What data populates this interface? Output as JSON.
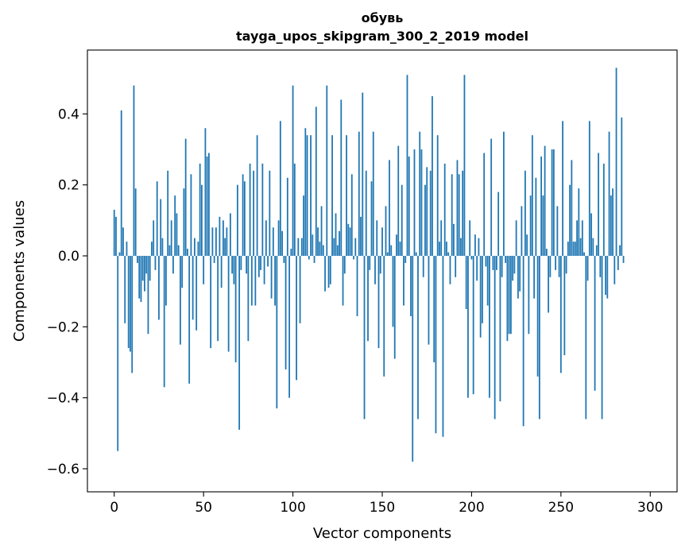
{
  "chart_data": {
    "type": "bar",
    "title": "обувь",
    "subtitle": "tayga_upos_skipgram_300_2_2019 model",
    "xlabel": "Vector components",
    "ylabel": "Components values",
    "xlim": [
      -15,
      315
    ],
    "ylim": [
      -0.665,
      0.58
    ],
    "xticks": [
      0,
      50,
      100,
      150,
      200,
      250,
      300
    ],
    "xtick_labels": [
      "0",
      "50",
      "100",
      "150",
      "200",
      "250",
      "300"
    ],
    "yticks": [
      -0.6,
      -0.4,
      -0.2,
      0.0,
      0.2,
      0.4
    ],
    "ytick_labels": [
      "−0.6",
      "−0.4",
      "−0.2",
      "0.0",
      "0.2",
      "0.4"
    ],
    "bar_color": "#1f77b4",
    "values": [
      0.13,
      0.11,
      -0.55,
      0.01,
      0.41,
      0.08,
      -0.19,
      0.04,
      -0.26,
      -0.27,
      -0.33,
      0.48,
      0.19,
      -0.02,
      -0.12,
      -0.13,
      -0.07,
      -0.1,
      -0.05,
      -0.22,
      -0.07,
      0.04,
      0.1,
      -0.04,
      0.21,
      -0.18,
      0.16,
      0.05,
      -0.37,
      -0.14,
      0.24,
      0.03,
      0.1,
      -0.05,
      0.17,
      0.12,
      0.03,
      -0.25,
      -0.09,
      0.19,
      0.33,
      0.02,
      -0.36,
      0.23,
      -0.18,
      0.05,
      -0.21,
      0.04,
      0.26,
      0.2,
      -0.08,
      0.36,
      0.28,
      0.29,
      -0.26,
      0.08,
      -0.02,
      0.08,
      -0.24,
      0.11,
      -0.09,
      0.1,
      0.05,
      0.08,
      -0.27,
      0.12,
      -0.05,
      -0.08,
      -0.3,
      0.2,
      -0.49,
      -0.04,
      0.23,
      0.21,
      -0.05,
      -0.24,
      0.26,
      -0.14,
      0.24,
      -0.14,
      0.34,
      -0.06,
      -0.04,
      0.26,
      -0.08,
      0.1,
      -0.03,
      0.24,
      -0.12,
      0.08,
      -0.14,
      -0.43,
      0.1,
      0.38,
      0.07,
      -0.02,
      -0.32,
      0.22,
      -0.4,
      0.02,
      0.48,
      0.26,
      -0.35,
      0.05,
      -0.19,
      0.05,
      0.17,
      0.36,
      0.34,
      -0.01,
      0.34,
      0.06,
      -0.02,
      0.42,
      0.08,
      0.04,
      0.14,
      0.03,
      -0.1,
      0.48,
      -0.09,
      -0.08,
      0.34,
      0.05,
      0.12,
      0.03,
      0.07,
      0.44,
      -0.14,
      -0.05,
      0.34,
      0.09,
      0.08,
      0.23,
      -0.01,
      0.05,
      -0.17,
      0.35,
      0.11,
      0.46,
      -0.46,
      0.24,
      -0.24,
      -0.04,
      0.21,
      0.35,
      -0.08,
      0.1,
      -0.26,
      -0.05,
      0.08,
      -0.34,
      0.14,
      0.01,
      0.27,
      0.03,
      -0.2,
      -0.29,
      0.06,
      0.31,
      0.04,
      0.2,
      -0.14,
      -0.02,
      0.51,
      0.28,
      -0.17,
      -0.58,
      0.3,
      0.01,
      -0.46,
      0.35,
      0.3,
      -0.06,
      0.2,
      0.25,
      -0.25,
      0.24,
      0.45,
      -0.3,
      -0.5,
      0.34,
      0.04,
      0.1,
      -0.51,
      0.26,
      0.04,
      0.01,
      -0.08,
      0.23,
      0.09,
      -0.06,
      0.27,
      0.23,
      0.05,
      0.24,
      0.51,
      -0.15,
      -0.4,
      0.1,
      -0.01,
      -0.39,
      0.06,
      -0.07,
      0.05,
      -0.23,
      -0.19,
      0.29,
      -0.03,
      -0.14,
      -0.4,
      0.33,
      -0.04,
      -0.46,
      -0.04,
      0.18,
      -0.41,
      -0.06,
      0.35,
      -0.02,
      -0.24,
      -0.22,
      -0.22,
      -0.07,
      -0.05,
      0.1,
      -0.12,
      -0.1,
      0.14,
      -0.48,
      0.24,
      0.06,
      -0.22,
      0.17,
      0.34,
      -0.12,
      0.22,
      -0.34,
      -0.46,
      0.28,
      0.17,
      0.31,
      0.02,
      -0.16,
      -0.06,
      0.3,
      0.3,
      -0.04,
      0.14,
      -0.06,
      -0.33,
      0.38,
      -0.28,
      -0.05,
      0.04,
      0.2,
      0.27,
      0.04,
      0.04,
      0.1,
      0.19,
      0.05,
      0.1,
      0.01,
      -0.46,
      -0.07,
      0.38,
      0.12,
      0.05,
      -0.38,
      0.03,
      0.29,
      -0.06,
      -0.46,
      0.26,
      -0.11,
      -0.12,
      0.35,
      0.17,
      0.19,
      -0.08,
      0.53,
      -0.04,
      0.03,
      0.39,
      -0.02
    ]
  }
}
